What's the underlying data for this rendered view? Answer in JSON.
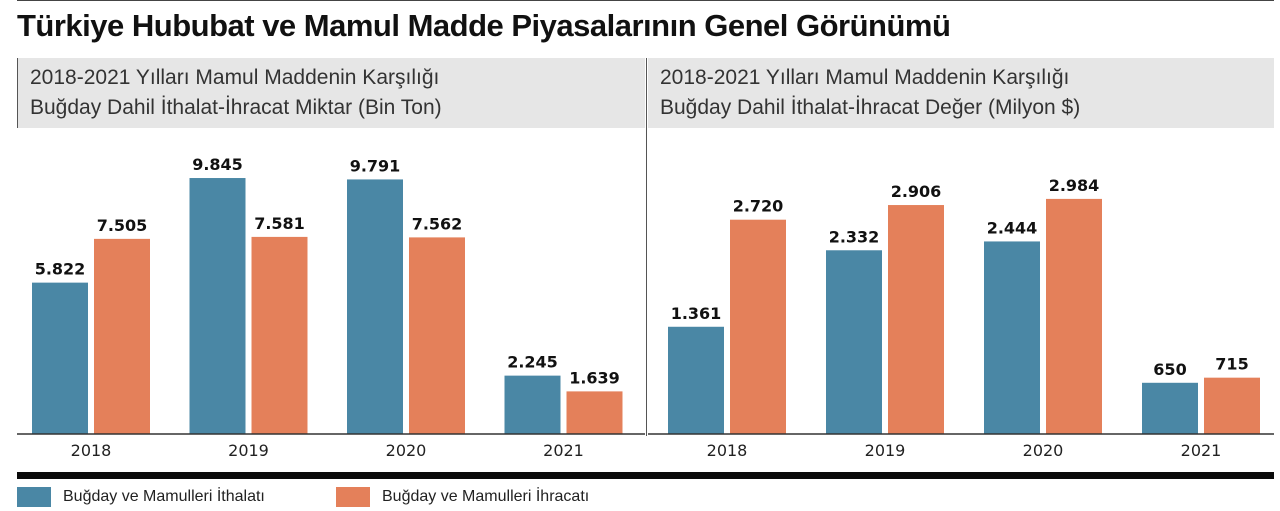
{
  "title": "Türkiye Hububat ve Mamul Madde Piyasalarının Genel Görünümü",
  "colors": {
    "import": "#4a87a5",
    "export": "#e4805a",
    "header_bg": "#e6e6e6"
  },
  "legend": {
    "import_label": "Buğday ve Mamulleri İthalatı",
    "export_label": "Buğday ve Mamulleri İhracatı"
  },
  "chart_data": [
    {
      "type": "bar",
      "title_line1": "2018-2021 Yılları Mamul Maddenin Karşılığı",
      "title_line2": "Buğday Dahil İthalat-İhracat Miktar (Bin Ton)",
      "categories": [
        "2018",
        "2019",
        "2020",
        "2021"
      ],
      "series": [
        {
          "name": "Buğday ve Mamulleri İthalatı",
          "values": [
            5822,
            9845,
            9791,
            2245
          ],
          "labels": [
            "5.822",
            "9.845",
            "9.791",
            "2.245"
          ]
        },
        {
          "name": "Buğday ve Mamulleri İhracatı",
          "values": [
            7505,
            7581,
            7562,
            1639
          ],
          "labels": [
            "7.505",
            "7.581",
            "7.562",
            "1.639"
          ]
        }
      ],
      "ylim": [
        0,
        10000
      ],
      "grid": false
    },
    {
      "type": "bar",
      "title_line1": "2018-2021 Yılları Mamul Maddenin Karşılığı",
      "title_line2": "Buğday Dahil İthalat-İhracat Değer (Milyon $)",
      "categories": [
        "2018",
        "2019",
        "2020",
        "2021"
      ],
      "series": [
        {
          "name": "Buğday ve Mamulleri İthalatı",
          "values": [
            1361,
            2332,
            2444,
            650
          ],
          "labels": [
            "1.361",
            "2.332",
            "2.444",
            "650"
          ]
        },
        {
          "name": "Buğday ve Mamulleri İhracatı",
          "values": [
            2720,
            2906,
            2984,
            715
          ],
          "labels": [
            "2.720",
            "2.906",
            "2.984",
            "715"
          ]
        }
      ],
      "ylim": [
        0,
        3300
      ],
      "grid": false
    }
  ]
}
